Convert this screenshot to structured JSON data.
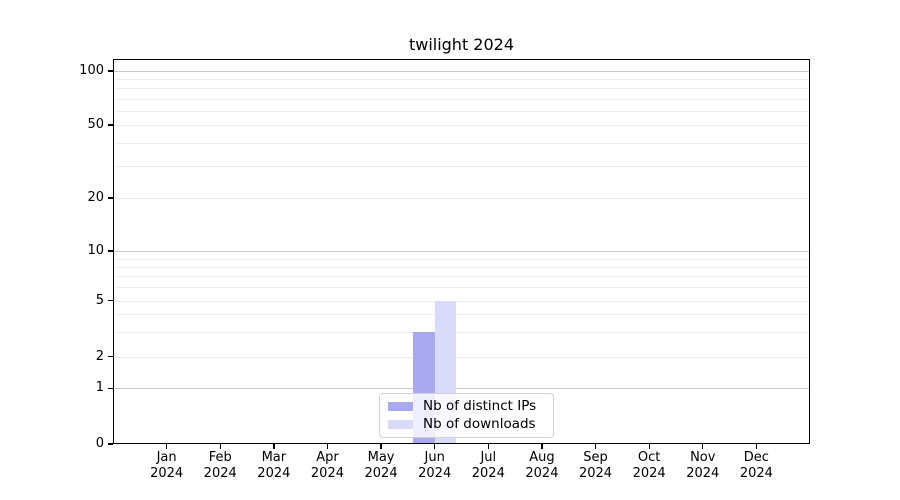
{
  "title": "twilight 2024",
  "chart_data": {
    "type": "bar",
    "title": "twilight 2024",
    "xlabel": "",
    "ylabel": "",
    "categories": [
      "Jan 2024",
      "Feb 2024",
      "Mar 2024",
      "Apr 2024",
      "May 2024",
      "Jun 2024",
      "Jul 2024",
      "Aug 2024",
      "Sep 2024",
      "Oct 2024",
      "Nov 2024",
      "Dec 2024"
    ],
    "series": [
      {
        "name": "Nb of distinct IPs",
        "color": "#a9a9f0",
        "values": [
          0,
          0,
          0,
          0,
          0,
          3,
          0,
          0,
          0,
          0,
          0,
          0
        ]
      },
      {
        "name": "Nb of downloads",
        "color": "#d9d9f8",
        "values": [
          0,
          0,
          0,
          0,
          0,
          5,
          0,
          0,
          0,
          0,
          0,
          0
        ]
      }
    ],
    "yscale": "symlog",
    "yticks": [
      0,
      1,
      2,
      5,
      10,
      20,
      50,
      100
    ],
    "minor_yticks": [
      3,
      4,
      6,
      7,
      8,
      9,
      30,
      40,
      60,
      70,
      80,
      90
    ],
    "major_grid_values": [
      1,
      10,
      100
    ],
    "ylim": [
      0,
      117
    ],
    "grid": "horizontal",
    "legend_position": "lower center",
    "colors": {
      "major_grid": "#c9c9c9",
      "minor_grid": "#ededed",
      "axis": "#000000"
    }
  }
}
